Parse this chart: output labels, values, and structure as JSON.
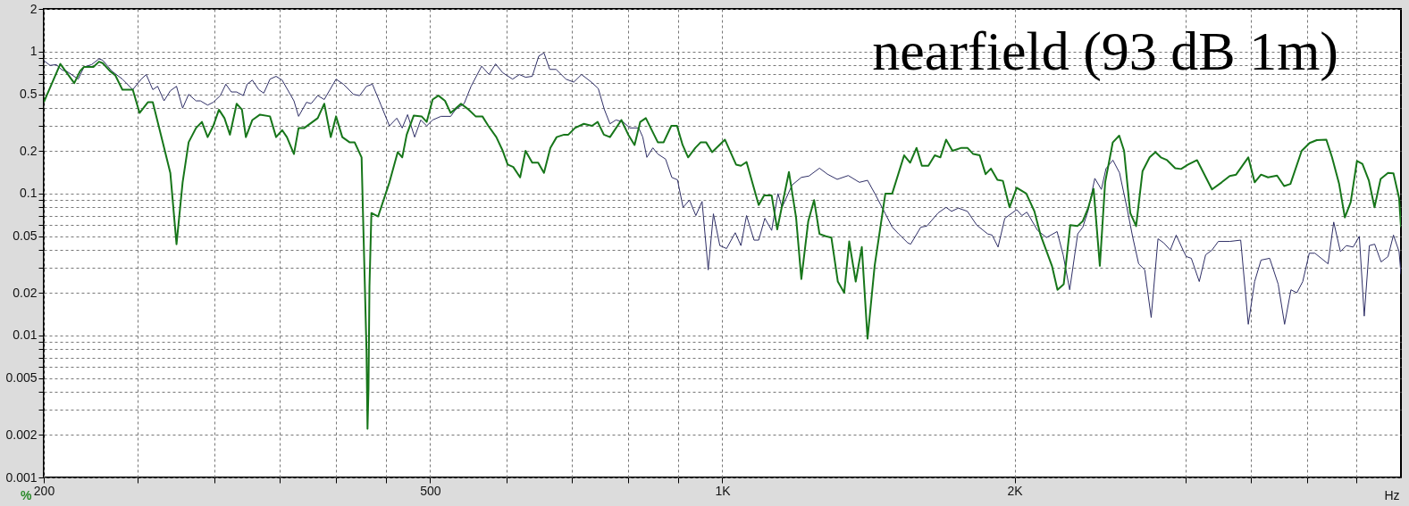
{
  "chart_data": {
    "type": "line",
    "title": "nearfield (93 dB 1m)",
    "xlabel": "Hz",
    "ylabel": "%",
    "log": "xy",
    "grid": true,
    "xlim": [
      200,
      5000
    ],
    "xticks": [
      200,
      {
        "value": 250,
        "label": null
      },
      {
        "value": 300,
        "label": null
      },
      {
        "value": 350,
        "label": null
      },
      {
        "value": 400,
        "label": null
      },
      {
        "value": 450,
        "label": null
      },
      500,
      {
        "value": 600,
        "label": null
      },
      {
        "value": 700,
        "label": null
      },
      {
        "value": 800,
        "label": null
      },
      {
        "value": 900,
        "label": null
      },
      {
        "value": 1000,
        "label": "1K"
      },
      {
        "value": 2000,
        "label": "2K"
      },
      {
        "value": 3000,
        "label": null
      },
      {
        "value": 3500,
        "label": null
      },
      {
        "value": 4000,
        "label": null
      },
      {
        "value": 4500,
        "label": null
      }
    ],
    "ylim": [
      0.001,
      2
    ],
    "yticks": [
      0.001,
      0.002,
      {
        "value": 0.003,
        "label": null
      },
      {
        "value": 0.004,
        "label": null
      },
      0.005,
      {
        "value": 0.006,
        "label": null
      },
      {
        "value": 0.007,
        "label": null
      },
      {
        "value": 0.008,
        "label": null
      },
      {
        "value": 0.009,
        "label": null
      },
      0.01,
      0.02,
      {
        "value": 0.03,
        "label": null
      },
      {
        "value": 0.04,
        "label": null
      },
      0.05,
      {
        "value": 0.06,
        "label": null
      },
      {
        "value": 0.07,
        "label": null
      },
      {
        "value": 0.08,
        "label": null
      },
      {
        "value": 0.09,
        "label": null
      },
      0.1,
      0.2,
      {
        "value": 0.3,
        "label": null
      },
      {
        "value": 0.4,
        "label": null
      },
      0.5,
      {
        "value": 0.6,
        "label": null
      },
      {
        "value": 0.7,
        "label": null
      },
      {
        "value": 0.8,
        "label": null
      },
      {
        "value": 0.9,
        "label": null
      },
      1,
      2
    ],
    "series": [
      {
        "color": "#2e2e66",
        "x": [
          200,
          203,
          206,
          209,
          211,
          217,
          220,
          224,
          228,
          230,
          235,
          241,
          247,
          252,
          255,
          259,
          262,
          266,
          270,
          274,
          278,
          282,
          287,
          290,
          295,
          299,
          304,
          308,
          312,
          316,
          321,
          324,
          328,
          333,
          337,
          342,
          347,
          352,
          362,
          366,
          373,
          377,
          383,
          389,
          400,
          407,
          417,
          423,
          430,
          436,
          445,
          454,
          462,
          468,
          474,
          482,
          489,
          496,
          503,
          513,
          525,
          531,
          542,
          551,
          565,
          575,
          584,
          594,
          608,
          618,
          627,
          637,
          647,
          655,
          664,
          674,
          690,
          703,
          716,
          733,
          745,
          756,
          766,
          777,
          790,
          803,
          820,
          828,
          836,
          848,
          858,
          874,
          887,
          899,
          911,
          925,
          939,
          953,
          967,
          979,
          994,
          1010,
          1031,
          1045,
          1059,
          1078,
          1090,
          1106,
          1124,
          1141,
          1152,
          1180,
          1206,
          1228,
          1259,
          1283,
          1313,
          1348,
          1384,
          1411,
          1438,
          1472,
          1496,
          1519,
          1552,
          1563,
          1601,
          1624,
          1668,
          1700,
          1722,
          1750,
          1788,
          1828,
          1876,
          1896,
          1923,
          1954,
          2010,
          2035,
          2059,
          2112,
          2157,
          2212,
          2244,
          2279,
          2323,
          2351,
          2381,
          2419,
          2457,
          2484,
          2525,
          2565,
          2610,
          2647,
          2684,
          2723,
          2765,
          2810,
          2848,
          2893,
          2934,
          2982,
          3005,
          3041,
          3099,
          3146,
          3194,
          3242,
          3331,
          3419,
          3481,
          3534,
          3588,
          3662,
          3737,
          3794,
          3852,
          3906,
          3961,
          4023,
          4077,
          4206,
          4263,
          4331,
          4393,
          4464,
          4530,
          4583,
          4639,
          4698,
          4770,
          4849,
          4912,
          4978,
          5000
        ],
        "values": [
          0.865,
          0.8,
          0.81,
          0.74,
          0.73,
          0.64,
          0.78,
          0.81,
          0.89,
          0.87,
          0.73,
          0.64,
          0.54,
          0.64,
          0.69,
          0.54,
          0.57,
          0.45,
          0.53,
          0.57,
          0.4,
          0.5,
          0.45,
          0.45,
          0.42,
          0.44,
          0.49,
          0.59,
          0.52,
          0.52,
          0.49,
          0.59,
          0.63,
          0.54,
          0.51,
          0.64,
          0.67,
          0.63,
          0.45,
          0.35,
          0.44,
          0.43,
          0.49,
          0.46,
          0.64,
          0.59,
          0.5,
          0.49,
          0.57,
          0.59,
          0.42,
          0.3,
          0.34,
          0.29,
          0.36,
          0.25,
          0.33,
          0.3,
          0.33,
          0.35,
          0.35,
          0.39,
          0.43,
          0.57,
          0.79,
          0.69,
          0.82,
          0.71,
          0.64,
          0.69,
          0.66,
          0.67,
          0.93,
          0.98,
          0.75,
          0.75,
          0.64,
          0.61,
          0.69,
          0.61,
          0.55,
          0.39,
          0.31,
          0.33,
          0.32,
          0.29,
          0.29,
          0.25,
          0.18,
          0.21,
          0.19,
          0.175,
          0.13,
          0.125,
          0.08,
          0.09,
          0.07,
          0.088,
          0.029,
          0.072,
          0.043,
          0.041,
          0.053,
          0.043,
          0.07,
          0.047,
          0.047,
          0.067,
          0.055,
          0.1,
          0.08,
          0.115,
          0.13,
          0.133,
          0.151,
          0.137,
          0.126,
          0.134,
          0.12,
          0.124,
          0.098,
          0.072,
          0.058,
          0.052,
          0.045,
          0.044,
          0.058,
          0.059,
          0.073,
          0.08,
          0.075,
          0.079,
          0.075,
          0.06,
          0.052,
          0.051,
          0.042,
          0.067,
          0.077,
          0.07,
          0.074,
          0.055,
          0.049,
          0.054,
          0.037,
          0.021,
          0.052,
          0.058,
          0.076,
          0.128,
          0.107,
          0.15,
          0.172,
          0.14,
          0.08,
          0.049,
          0.032,
          0.029,
          0.0134,
          0.048,
          0.045,
          0.04,
          0.051,
          0.04,
          0.036,
          0.035,
          0.024,
          0.037,
          0.04,
          0.046,
          0.046,
          0.047,
          0.012,
          0.024,
          0.034,
          0.035,
          0.023,
          0.012,
          0.021,
          0.02,
          0.024,
          0.038,
          0.038,
          0.032,
          0.063,
          0.039,
          0.043,
          0.042,
          0.05,
          0.0137,
          0.043,
          0.044,
          0.033,
          0.036,
          0.051,
          0.039,
          0.027
        ]
      },
      {
        "color": "#17761a",
        "x": [
          200,
          208,
          215,
          218,
          220,
          225,
          228,
          230,
          234,
          237,
          241,
          247,
          251,
          256,
          259,
          265,
          270,
          274,
          278,
          282,
          287,
          291,
          295,
          299,
          303,
          307,
          311,
          316,
          320,
          323,
          328,
          334,
          342,
          347,
          352,
          356,
          362,
          366,
          371,
          383,
          389,
          395,
          400,
          406,
          413,
          418,
          425,
          426,
          428,
          430,
          431,
          432,
          433,
          435,
          442,
          454,
          463,
          468,
          473,
          481,
          490,
          496,
          503,
          510,
          518,
          525,
          538,
          548,
          557,
          566,
          574,
          585,
          594,
          601,
          609,
          619,
          627,
          637,
          646,
          655,
          665,
          675,
          687,
          694,
          705,
          720,
          734,
          744,
          755,
          766,
          787,
          800,
          812,
          823,
          834,
          858,
          870,
          886,
          898,
          910,
          922,
          938,
          950,
          962,
          976,
          1006,
          1033,
          1045,
          1059,
          1090,
          1104,
          1124,
          1139,
          1171,
          1191,
          1206,
          1226,
          1243,
          1259,
          1278,
          1295,
          1315,
          1335,
          1351,
          1372,
          1392,
          1411,
          1435,
          1472,
          1496,
          1539,
          1561,
          1585,
          1605,
          1630,
          1655,
          1677,
          1700,
          1726,
          1763,
          1788,
          1813,
          1841,
          1867,
          1891,
          1920,
          1945,
          1976,
          2010,
          2056,
          2096,
          2127,
          2185,
          2214,
          2247,
          2282,
          2321,
          2351,
          2381,
          2412,
          2448,
          2479,
          2524,
          2563,
          2593,
          2631,
          2668,
          2709,
          2755,
          2793,
          2829,
          2871,
          2927,
          2968,
          3018,
          3083,
          3194,
          3268,
          3331,
          3382,
          3481,
          3534,
          3588,
          3648,
          3727,
          3790,
          3847,
          3951,
          4026,
          4095,
          4189,
          4246,
          4318,
          4377,
          4438,
          4505,
          4563,
          4633,
          4696,
          4765,
          4849,
          4912,
          4978,
          5000
        ],
        "values": [
          0.44,
          0.82,
          0.6,
          0.73,
          0.78,
          0.78,
          0.85,
          0.83,
          0.73,
          0.68,
          0.54,
          0.54,
          0.37,
          0.44,
          0.44,
          0.235,
          0.14,
          0.044,
          0.12,
          0.23,
          0.29,
          0.32,
          0.25,
          0.3,
          0.39,
          0.34,
          0.26,
          0.43,
          0.39,
          0.25,
          0.33,
          0.36,
          0.35,
          0.25,
          0.28,
          0.25,
          0.19,
          0.29,
          0.29,
          0.34,
          0.43,
          0.25,
          0.35,
          0.25,
          0.23,
          0.23,
          0.18,
          0.093,
          0.027,
          0.0077,
          0.0022,
          0.0042,
          0.022,
          0.073,
          0.069,
          0.12,
          0.196,
          0.18,
          0.26,
          0.355,
          0.35,
          0.32,
          0.46,
          0.49,
          0.45,
          0.37,
          0.43,
          0.39,
          0.35,
          0.35,
          0.3,
          0.25,
          0.2,
          0.16,
          0.154,
          0.13,
          0.2,
          0.165,
          0.165,
          0.14,
          0.21,
          0.25,
          0.26,
          0.26,
          0.29,
          0.31,
          0.3,
          0.32,
          0.26,
          0.25,
          0.33,
          0.26,
          0.22,
          0.32,
          0.34,
          0.23,
          0.23,
          0.3,
          0.3,
          0.22,
          0.18,
          0.21,
          0.23,
          0.23,
          0.196,
          0.24,
          0.16,
          0.157,
          0.167,
          0.083,
          0.097,
          0.097,
          0.056,
          0.142,
          0.068,
          0.025,
          0.064,
          0.09,
          0.052,
          0.05,
          0.049,
          0.024,
          0.02,
          0.046,
          0.024,
          0.042,
          0.0095,
          0.031,
          0.1,
          0.1,
          0.186,
          0.165,
          0.21,
          0.157,
          0.157,
          0.186,
          0.18,
          0.24,
          0.2,
          0.21,
          0.21,
          0.19,
          0.186,
          0.137,
          0.15,
          0.125,
          0.123,
          0.08,
          0.11,
          0.1,
          0.075,
          0.051,
          0.031,
          0.021,
          0.023,
          0.06,
          0.059,
          0.064,
          0.079,
          0.108,
          0.031,
          0.12,
          0.229,
          0.256,
          0.2,
          0.073,
          0.059,
          0.144,
          0.18,
          0.196,
          0.18,
          0.172,
          0.151,
          0.149,
          0.16,
          0.172,
          0.107,
          0.12,
          0.133,
          0.136,
          0.18,
          0.12,
          0.136,
          0.13,
          0.134,
          0.113,
          0.117,
          0.2,
          0.227,
          0.238,
          0.24,
          0.18,
          0.117,
          0.068,
          0.087,
          0.17,
          0.162,
          0.124,
          0.08,
          0.127,
          0.14,
          0.139,
          0.093,
          0.058
        ]
      }
    ]
  }
}
